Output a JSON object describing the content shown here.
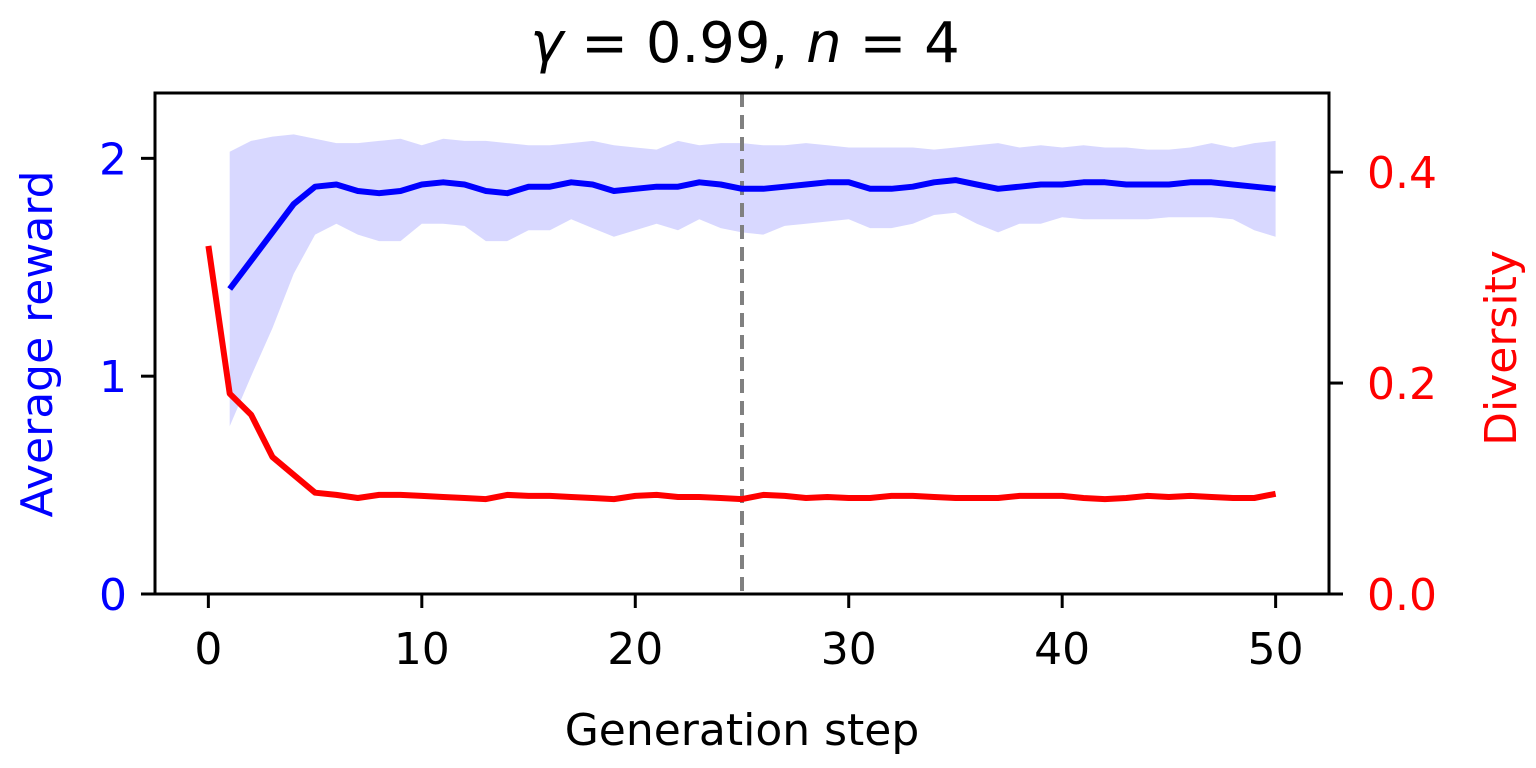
{
  "chart_data": {
    "type": "line",
    "title": {
      "gamma": "γ",
      "eq1": " = 0.99, ",
      "n": "n",
      "eq2": " = 4"
    },
    "xlabel": "Generation step",
    "ylabel_left": "Average reward",
    "ylabel_right": "Diversity",
    "xlim": [
      -2.5,
      52.5
    ],
    "ylim_left": [
      0,
      2.3
    ],
    "ylim_right": [
      0,
      0.475
    ],
    "x_ticks": [
      0,
      10,
      20,
      30,
      40,
      50
    ],
    "x_tick_labels": [
      "0",
      "10",
      "20",
      "30",
      "40",
      "50"
    ],
    "y_left_ticks": [
      0,
      1,
      2
    ],
    "y_left_tick_labels": [
      "0",
      "1",
      "2"
    ],
    "y_right_ticks": [
      0.0,
      0.2,
      0.4
    ],
    "y_right_tick_labels": [
      "0.0",
      "0.2",
      "0.4"
    ],
    "vline_x": 25,
    "colors": {
      "reward": "#0000ff",
      "band": "#d8d8ff",
      "diversity": "#ff0000",
      "vline": "#808080",
      "axis": "#000000"
    },
    "series": [
      {
        "name": "Average reward",
        "axis": "left",
        "x": [
          1,
          2,
          3,
          4,
          5,
          6,
          7,
          8,
          9,
          10,
          11,
          12,
          13,
          14,
          15,
          16,
          17,
          18,
          19,
          20,
          21,
          22,
          23,
          24,
          25,
          26,
          27,
          28,
          29,
          30,
          31,
          32,
          33,
          34,
          35,
          36,
          37,
          38,
          39,
          40,
          41,
          42,
          43,
          44,
          45,
          46,
          47,
          48,
          49,
          50
        ],
        "values": [
          1.4,
          1.53,
          1.66,
          1.79,
          1.87,
          1.88,
          1.85,
          1.84,
          1.85,
          1.88,
          1.89,
          1.88,
          1.85,
          1.84,
          1.87,
          1.87,
          1.89,
          1.88,
          1.85,
          1.86,
          1.87,
          1.87,
          1.89,
          1.88,
          1.86,
          1.86,
          1.87,
          1.88,
          1.89,
          1.89,
          1.86,
          1.86,
          1.87,
          1.89,
          1.9,
          1.88,
          1.86,
          1.87,
          1.88,
          1.88,
          1.89,
          1.89,
          1.88,
          1.88,
          1.88,
          1.89,
          1.89,
          1.88,
          1.87,
          1.86
        ],
        "upper": [
          2.03,
          2.08,
          2.1,
          2.11,
          2.09,
          2.07,
          2.07,
          2.08,
          2.09,
          2.06,
          2.09,
          2.08,
          2.08,
          2.07,
          2.06,
          2.06,
          2.07,
          2.08,
          2.06,
          2.05,
          2.04,
          2.08,
          2.06,
          2.07,
          2.07,
          2.06,
          2.06,
          2.07,
          2.06,
          2.05,
          2.05,
          2.05,
          2.05,
          2.04,
          2.05,
          2.06,
          2.07,
          2.05,
          2.06,
          2.05,
          2.06,
          2.05,
          2.05,
          2.04,
          2.04,
          2.05,
          2.07,
          2.05,
          2.07,
          2.08
        ],
        "lower": [
          0.77,
          1.0,
          1.22,
          1.47,
          1.65,
          1.7,
          1.65,
          1.62,
          1.62,
          1.7,
          1.7,
          1.69,
          1.62,
          1.62,
          1.67,
          1.67,
          1.72,
          1.68,
          1.64,
          1.67,
          1.7,
          1.67,
          1.72,
          1.68,
          1.66,
          1.65,
          1.69,
          1.7,
          1.71,
          1.72,
          1.68,
          1.68,
          1.7,
          1.74,
          1.75,
          1.7,
          1.66,
          1.7,
          1.7,
          1.73,
          1.72,
          1.72,
          1.72,
          1.72,
          1.73,
          1.73,
          1.73,
          1.72,
          1.67,
          1.64
        ]
      },
      {
        "name": "Diversity",
        "axis": "right",
        "x": [
          0,
          1,
          2,
          3,
          4,
          5,
          6,
          7,
          8,
          9,
          10,
          11,
          12,
          13,
          14,
          15,
          16,
          17,
          18,
          19,
          20,
          21,
          22,
          23,
          24,
          25,
          26,
          27,
          28,
          29,
          30,
          31,
          32,
          33,
          34,
          35,
          36,
          37,
          38,
          39,
          40,
          41,
          42,
          43,
          44,
          45,
          46,
          47,
          48,
          49,
          50
        ],
        "values": [
          0.33,
          0.19,
          0.17,
          0.13,
          0.113,
          0.096,
          0.094,
          0.091,
          0.094,
          0.094,
          0.093,
          0.092,
          0.091,
          0.09,
          0.094,
          0.093,
          0.093,
          0.092,
          0.091,
          0.09,
          0.093,
          0.094,
          0.092,
          0.092,
          0.091,
          0.09,
          0.094,
          0.093,
          0.091,
          0.092,
          0.091,
          0.091,
          0.093,
          0.093,
          0.092,
          0.091,
          0.091,
          0.091,
          0.093,
          0.093,
          0.093,
          0.091,
          0.09,
          0.091,
          0.093,
          0.092,
          0.093,
          0.092,
          0.091,
          0.091,
          0.095
        ]
      }
    ]
  }
}
